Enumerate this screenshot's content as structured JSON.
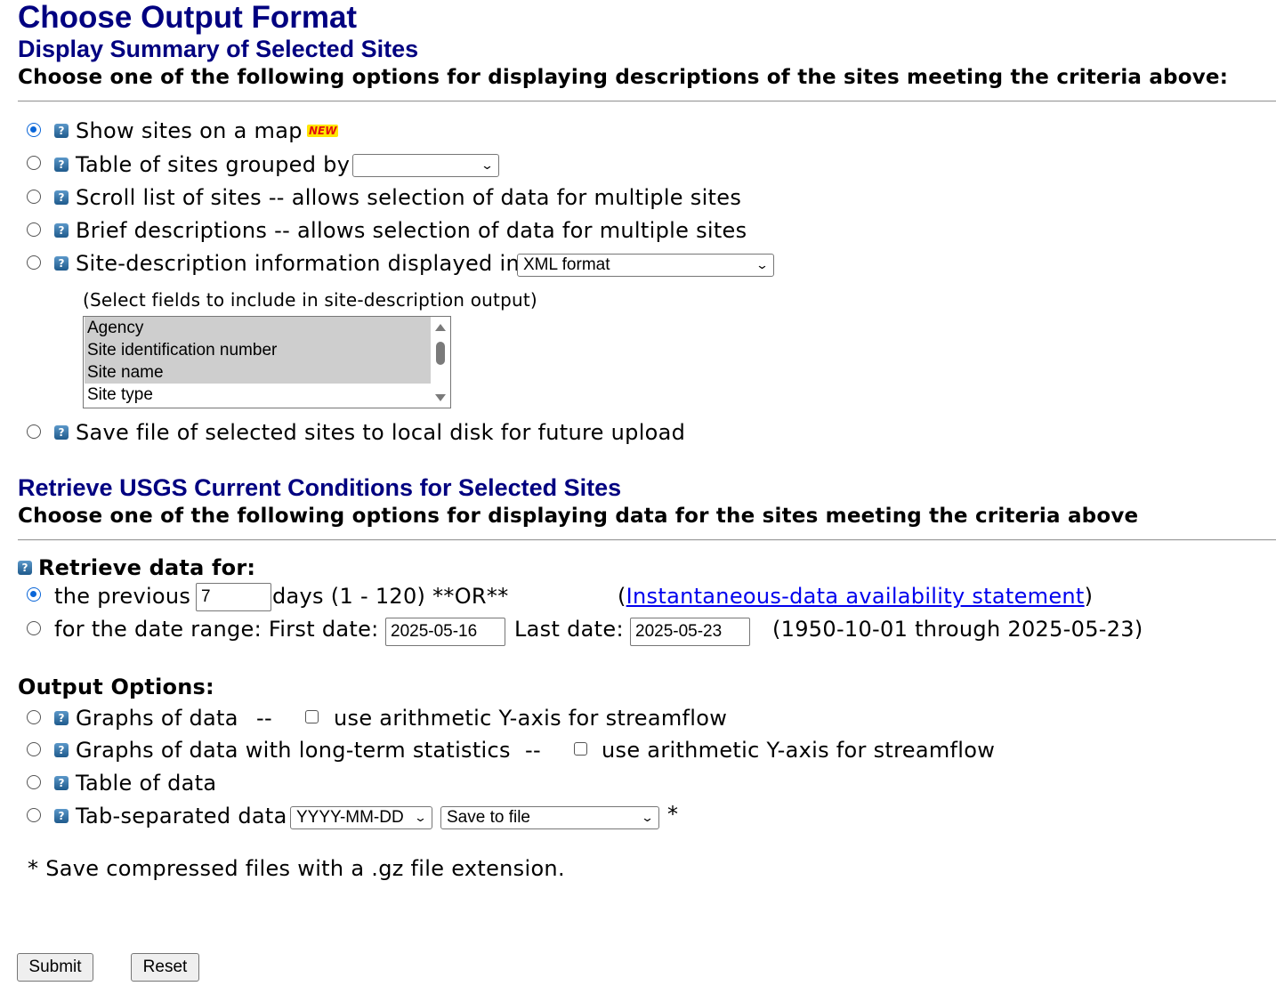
{
  "page_title": "Choose Output Format",
  "summary": {
    "heading": "Display Summary of Selected Sites",
    "instruction": "Choose one of the following options for displaying descriptions of the sites meeting the criteria above:",
    "options": {
      "map": {
        "label": "Show sites on a map",
        "badge": "NEW"
      },
      "table_grouped": {
        "label": "Table of sites grouped by",
        "select_value": ""
      },
      "scroll_list": {
        "label": "Scroll list of sites -- allows selection of data for multiple sites"
      },
      "brief": {
        "label": "Brief descriptions -- allows selection of data for multiple sites"
      },
      "site_description": {
        "label": "Site-description information displayed in",
        "select_value": "XML format"
      },
      "save_file": {
        "label": "Save file of selected sites to local disk for future upload"
      }
    },
    "fields_hint": "(Select fields to include in site-description output)",
    "fields": [
      "Agency",
      "Site identification number",
      "Site name",
      "Site type"
    ]
  },
  "conditions": {
    "heading": "Retrieve USGS Current Conditions for Selected Sites",
    "instruction": "Choose one of the following options for displaying data for the sites meeting the criteria above",
    "retrieve_label": "Retrieve data for:",
    "previous": {
      "label": "the previous",
      "value": "7",
      "suffix": "days (1 - 120) **OR**",
      "link_open": "(",
      "link_text": "Instantaneous-data availability statement",
      "link_close": ")"
    },
    "range": {
      "label": "for the date range: First date:",
      "first_date": "2025-05-16",
      "last_label": "Last date:",
      "last_date": "2025-05-23",
      "available": "(1950-10-01 through 2025-05-23)"
    }
  },
  "output_options": {
    "heading": "Output Options:",
    "graphs": {
      "label": "Graphs of data",
      "sep": "--",
      "checkbox_label": "use arithmetic Y-axis for streamflow"
    },
    "graphs_stats": {
      "label": "Graphs of data with long-term statistics",
      "sep": "--",
      "checkbox_label": "use arithmetic Y-axis for streamflow"
    },
    "table": {
      "label": "Table of data"
    },
    "tab_separated": {
      "label": "Tab-separated data",
      "date_format": "YYYY-MM-DD",
      "save_mode": "Save to file",
      "asterisk": "*"
    },
    "note": "* Save compressed files with a .gz file extension."
  },
  "buttons": {
    "submit": "Submit",
    "reset": "Reset"
  },
  "icons": {
    "help": "help-question-icon",
    "chevron": "chevron-down-icon"
  },
  "colors": {
    "heading": "#000080",
    "link": "#0000ee",
    "radio_checked": "#0a66d8"
  }
}
